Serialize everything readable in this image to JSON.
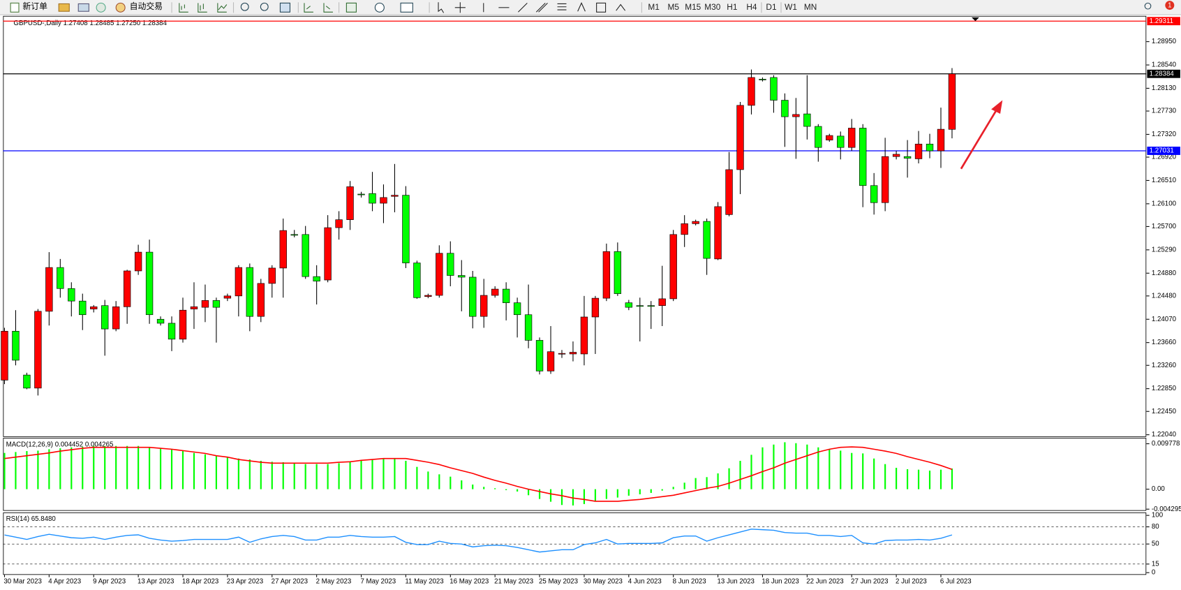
{
  "toolbar": {
    "new_order": "新订单",
    "auto_trading": "自动交易",
    "timeframes": [
      "M1",
      "M5",
      "M15",
      "M30",
      "H1",
      "H4",
      "D1",
      "W1",
      "MN"
    ],
    "notifications": 1
  },
  "chart_data": [
    {
      "type": "candlestick",
      "title": "GBPUSD-,Daily  1.27408 1.28485 1.27250 1.28384",
      "categories": [
        "30 Mar 2023",
        null,
        null,
        null,
        "4 Apr 2023",
        null,
        null,
        null,
        "9 Apr 2023",
        null,
        null,
        null,
        "13 Apr 2023",
        null,
        null,
        null,
        "18 Apr 2023",
        null,
        null,
        null,
        "23 Apr 2023",
        null,
        null,
        null,
        "27 Apr 2023",
        null,
        null,
        null,
        "2 May 2023",
        null,
        null,
        null,
        "7 May 2023",
        null,
        null,
        null,
        "11 May 2023",
        null,
        null,
        null,
        "16 May 2023",
        null,
        null,
        null,
        "21 May 2023",
        null,
        null,
        null,
        "25 May 2023",
        null,
        null,
        null,
        "30 May 2023",
        null,
        null,
        null,
        "4 Jun 2023",
        null,
        null,
        null,
        "8 Jun 2023",
        null,
        null,
        null,
        "13 Jun 2023",
        null,
        null,
        null,
        "18 Jun 2023",
        null,
        null,
        null,
        "22 Jun 2023",
        null,
        null,
        null,
        "27 Jun 2023",
        null,
        null,
        null,
        "2 Jul 2023",
        null,
        null,
        null,
        "6 Jul 2023",
        null
      ],
      "open": [
        1.23,
        1.2386,
        1.2309,
        1.2286,
        1.2421,
        1.2498,
        1.2461,
        1.2439,
        1.2425,
        1.2431,
        1.239,
        1.2429,
        1.2492,
        1.2525,
        1.2407,
        1.24,
        1.2372,
        1.2425,
        1.2428,
        1.244,
        1.2444,
        1.2448,
        1.2498,
        1.2412,
        1.247,
        1.2497,
        1.2556,
        1.2556,
        1.2482,
        1.2476,
        1.2568,
        1.2582,
        1.2627,
        1.2628,
        1.2611,
        1.2623,
        1.2625,
        1.2506,
        1.2447,
        1.2449,
        1.2523,
        1.2484,
        1.2481,
        1.2412,
        1.2449,
        1.246,
        1.2436,
        1.2415,
        1.237,
        1.2316,
        1.2346,
        1.2346,
        1.2346,
        1.2411,
        1.2444,
        1.2526,
        1.2436,
        1.2431,
        1.2431,
        1.2431,
        1.2443,
        1.2556,
        1.2575,
        1.2579,
        1.2513,
        1.2591,
        1.267,
        1.2783,
        1.2829,
        1.2832,
        1.2792,
        1.2763,
        1.2768,
        1.2746,
        1.2722,
        1.2729,
        1.2709,
        1.2743,
        1.2642,
        1.2612,
        1.2693,
        1.2693,
        1.2689,
        1.2715,
        1.2703,
        1.27408
      ],
      "high": [
        1.2392,
        1.2423,
        1.2313,
        1.2425,
        1.2525,
        1.2513,
        1.2472,
        1.2452,
        1.2432,
        1.2441,
        1.2439,
        1.2494,
        1.2538,
        1.2547,
        1.2412,
        1.2412,
        1.2445,
        1.2472,
        1.2468,
        1.2445,
        1.2452,
        1.2502,
        1.2505,
        1.2478,
        1.2502,
        1.2584,
        1.2564,
        1.2571,
        1.2502,
        1.259,
        1.2597,
        1.265,
        1.2631,
        1.2666,
        1.2644,
        1.268,
        1.2641,
        1.251,
        1.2452,
        1.2537,
        1.2544,
        1.2511,
        1.2492,
        1.2478,
        1.2465,
        1.2472,
        1.2445,
        1.2468,
        1.2375,
        1.2395,
        1.2353,
        1.2368,
        1.2448,
        1.2448,
        1.254,
        1.2542,
        1.2441,
        1.2445,
        1.2439,
        1.2501,
        1.2564,
        1.259,
        1.2582,
        1.2584,
        1.2613,
        1.2701,
        1.2789,
        1.2846,
        1.2832,
        1.2836,
        1.2804,
        1.2796,
        1.2836,
        1.275,
        1.2733,
        1.2737,
        1.2759,
        1.275,
        1.2664,
        1.2726,
        1.2703,
        1.2722,
        1.2738,
        1.2733,
        1.2779,
        1.28485
      ],
      "low": [
        1.2293,
        1.2326,
        1.2284,
        1.2273,
        1.2396,
        1.2445,
        1.2412,
        1.2388,
        1.2419,
        1.2343,
        1.2386,
        1.2399,
        1.2485,
        1.2399,
        1.2396,
        1.2351,
        1.2366,
        1.239,
        1.2402,
        1.2366,
        1.2439,
        1.2412,
        1.2386,
        1.2402,
        1.2445,
        1.2445,
        1.2551,
        1.2478,
        1.2433,
        1.2472,
        1.2547,
        1.2564,
        1.2621,
        1.2597,
        1.2576,
        1.2595,
        1.2497,
        1.2443,
        1.2444,
        1.2445,
        1.2465,
        1.2421,
        1.2391,
        1.2392,
        1.2445,
        1.2405,
        1.2375,
        1.2356,
        1.231,
        1.2311,
        1.2339,
        1.2333,
        1.2326,
        1.2346,
        1.2439,
        1.2448,
        1.2423,
        1.2368,
        1.239,
        1.2395,
        1.2439,
        1.2534,
        1.2572,
        1.2485,
        1.2511,
        1.2588,
        1.2627,
        1.2767,
        1.2825,
        1.277,
        1.271,
        1.2689,
        1.2723,
        1.2684,
        1.2719,
        1.2688,
        1.2703,
        1.2604,
        1.2591,
        1.2597,
        1.2688,
        1.2656,
        1.2681,
        1.269,
        1.2673,
        1.2725
      ],
      "close": [
        1.2386,
        1.2335,
        1.2286,
        1.2421,
        1.2498,
        1.2461,
        1.2439,
        1.2415,
        1.2429,
        1.239,
        1.2429,
        1.2492,
        1.2525,
        1.2415,
        1.24,
        1.2372,
        1.2423,
        1.2429,
        1.244,
        1.2428,
        1.2448,
        1.2498,
        1.2412,
        1.247,
        1.2497,
        1.2563,
        1.2556,
        1.2482,
        1.2474,
        1.2568,
        1.2582,
        1.264,
        1.2627,
        1.2611,
        1.2621,
        1.2625,
        1.2506,
        1.2445,
        1.2449,
        1.2523,
        1.2484,
        1.2481,
        1.2412,
        1.2449,
        1.246,
        1.2436,
        1.2415,
        1.237,
        1.2316,
        1.235,
        1.2347,
        1.2349,
        1.2411,
        1.2444,
        1.2526,
        1.2452,
        1.2428,
        1.2431,
        1.2431,
        1.2443,
        1.2556,
        1.2575,
        1.2579,
        1.2514,
        1.2605,
        1.267,
        1.2783,
        1.2832,
        1.2828,
        1.2792,
        1.2763,
        1.2767,
        1.2746,
        1.2709,
        1.273,
        1.2709,
        1.2743,
        1.2642,
        1.2612,
        1.2693,
        1.2697,
        1.269,
        1.2715,
        1.2703,
        1.2741,
        1.28384
      ],
      "up_color": "#ff0000",
      "down_color": "#00ff00",
      "wick_color": "#000000",
      "ylim": [
        1.22,
        1.2939
      ],
      "yticks": [
        {
          "value": 1.2895,
          "label": "1.28950"
        },
        {
          "value": 1.2854,
          "label": "1.28540"
        },
        {
          "value": 1.2813,
          "label": "1.28130"
        },
        {
          "value": 1.2773,
          "label": "1.27730"
        },
        {
          "value": 1.2732,
          "label": "1.27320"
        },
        {
          "value": 1.2692,
          "label": "1.26920"
        },
        {
          "value": 1.2651,
          "label": "1.26510"
        },
        {
          "value": 1.261,
          "label": "1.26100"
        },
        {
          "value": 1.257,
          "label": "1.25700"
        },
        {
          "value": 1.2529,
          "label": "1.25290"
        },
        {
          "value": 1.2488,
          "label": "1.24880"
        },
        {
          "value": 1.2448,
          "label": "1.24480"
        },
        {
          "value": 1.2407,
          "label": "1.24070"
        },
        {
          "value": 1.2366,
          "label": "1.23660"
        },
        {
          "value": 1.2326,
          "label": "1.23260"
        },
        {
          "value": 1.2285,
          "label": "1.22850"
        },
        {
          "value": 1.2245,
          "label": "1.22450"
        },
        {
          "value": 1.2204,
          "label": "1.22040"
        }
      ],
      "grid": false,
      "hlines": [
        {
          "value": 1.29311,
          "color": "#ff0000"
        },
        {
          "value": 1.28384,
          "color": "#000000"
        },
        {
          "value": 1.27031,
          "color": "#0000ff"
        }
      ]
    },
    {
      "type": "macd",
      "title": "MACD(12,26,9) 0.004452 0.004265",
      "values": [
        0.0078,
        0.008,
        0.0082,
        0.0083,
        0.0086,
        0.0088,
        0.009,
        0.0091,
        0.0093,
        0.0093,
        0.0093,
        0.0093,
        0.0093,
        0.0091,
        0.0088,
        0.0085,
        0.0082,
        0.0078,
        0.0075,
        0.0072,
        0.0069,
        0.0066,
        0.0064,
        0.0061,
        0.0059,
        0.0058,
        0.0056,
        0.0054,
        0.0054,
        0.0054,
        0.0056,
        0.0058,
        0.0061,
        0.0064,
        0.0067,
        0.0067,
        0.0061,
        0.0048,
        0.0038,
        0.0032,
        0.0027,
        0.0019,
        0.001,
        0.0005,
        0.0002,
        -0.0002,
        -0.0005,
        -0.0013,
        -0.0021,
        -0.0027,
        -0.0034,
        -0.0035,
        -0.0032,
        -0.0026,
        -0.0021,
        -0.0018,
        -0.0014,
        -0.0011,
        -0.0008,
        -0.0003,
        0.0005,
        0.0014,
        0.0024,
        0.0026,
        0.0034,
        0.0045,
        0.0061,
        0.0074,
        0.009,
        0.0096,
        0.0101,
        0.0099,
        0.0096,
        0.009,
        0.0086,
        0.0083,
        0.0078,
        0.0077,
        0.0066,
        0.0054,
        0.0046,
        0.0043,
        0.0042,
        0.004,
        0.0042,
        0.004452
      ],
      "signal": [
        0.0066,
        0.0069,
        0.0072,
        0.0075,
        0.0078,
        0.0082,
        0.0085,
        0.0088,
        0.009,
        0.009,
        0.009,
        0.009,
        0.009,
        0.009,
        0.0088,
        0.0086,
        0.0083,
        0.008,
        0.0077,
        0.0072,
        0.0069,
        0.0064,
        0.0061,
        0.0058,
        0.0056,
        0.0056,
        0.0056,
        0.0056,
        0.0056,
        0.0056,
        0.0058,
        0.0059,
        0.0062,
        0.0064,
        0.0066,
        0.0066,
        0.0066,
        0.0062,
        0.0058,
        0.0053,
        0.0046,
        0.004,
        0.0034,
        0.0026,
        0.0019,
        0.0013,
        0.0006,
        0,
        -0.0005,
        -0.001,
        -0.0014,
        -0.0019,
        -0.0022,
        -0.0026,
        -0.0026,
        -0.0026,
        -0.0024,
        -0.0022,
        -0.0019,
        -0.0016,
        -0.0013,
        -0.0008,
        -0.0003,
        0.0002,
        0.0006,
        0.0013,
        0.0021,
        0.0029,
        0.0038,
        0.0046,
        0.0056,
        0.0064,
        0.0072,
        0.008,
        0.0086,
        0.009,
        0.0091,
        0.009,
        0.0086,
        0.0082,
        0.0077,
        0.007,
        0.0064,
        0.0058,
        0.0051,
        0.004265
      ],
      "color": "#00ff00",
      "signal_color": "#ff0000",
      "ylim": [
        -0.0045,
        0.0109
      ],
      "yticks": [
        0.009778,
        {
          "value": 0,
          "label": "0.00"
        },
        -0.004295
      ],
      "grid": false
    },
    {
      "type": "line",
      "title": "RSI(14) 65.8480",
      "values": [
        65.8,
        62,
        58,
        63,
        67,
        64,
        61,
        60,
        62,
        58,
        62,
        65,
        66,
        60,
        57,
        55,
        56,
        58,
        58,
        58,
        58,
        62,
        53,
        59,
        63,
        65,
        63,
        57,
        57,
        62,
        62,
        65,
        63,
        62,
        62,
        63,
        53,
        49,
        49,
        55,
        51,
        50,
        45,
        47,
        48,
        47,
        44,
        40,
        36,
        38,
        40,
        40,
        49,
        52,
        58,
        50,
        51,
        51,
        51,
        52,
        61,
        64,
        64,
        55,
        61,
        66,
        71,
        76,
        75,
        74,
        70,
        69,
        69,
        65,
        65,
        63,
        65,
        52,
        50,
        56,
        57,
        57,
        58,
        57,
        60,
        65.848
      ],
      "color": "#1e90ff",
      "ylim": [
        0,
        100
      ],
      "yticks": [
        100,
        80,
        50,
        15,
        0
      ],
      "grid": true
    }
  ]
}
